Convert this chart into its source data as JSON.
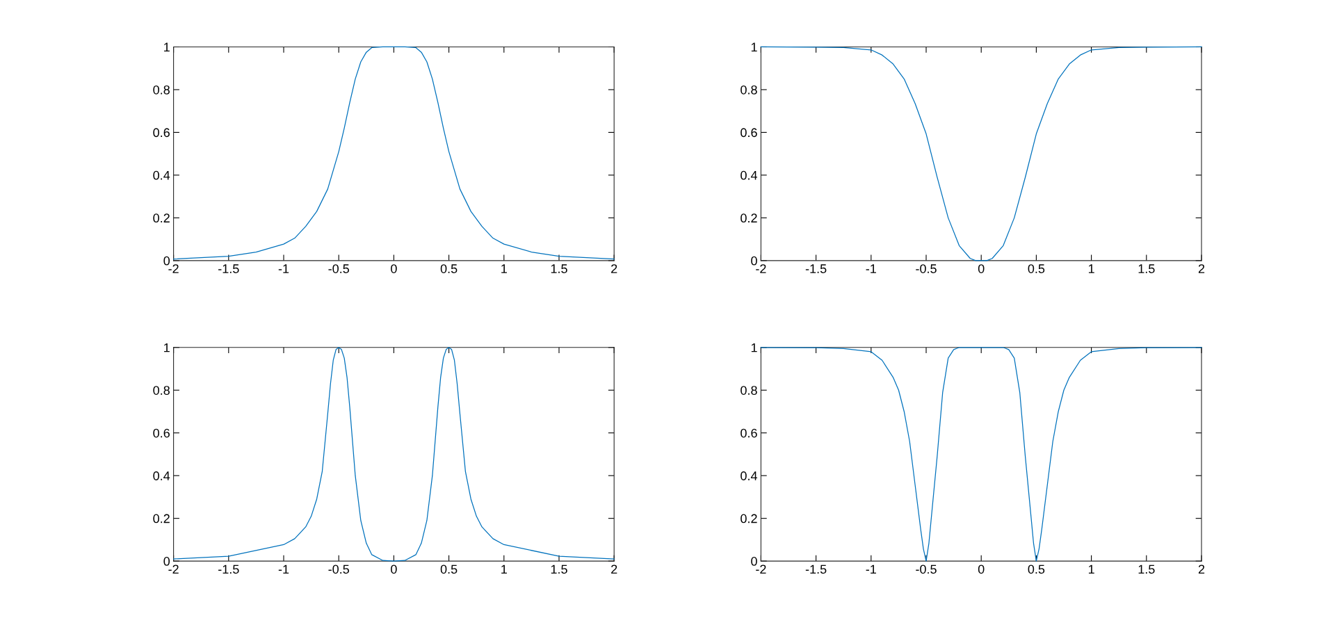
{
  "chart_data": [
    {
      "type": "line",
      "xlim": [
        -2,
        2
      ],
      "ylim": [
        0,
        1
      ],
      "xticks": [
        -2,
        -1.5,
        -1,
        -0.5,
        0,
        0.5,
        1,
        1.5,
        2
      ],
      "yticks": [
        0,
        0.2,
        0.4,
        0.6,
        0.8,
        1
      ],
      "grid": false,
      "legend": false,
      "series": [
        {
          "color": "#0072bd",
          "x": [
            -2,
            -1.5,
            -1.25,
            -1,
            -0.9,
            -0.8,
            -0.7,
            -0.6,
            -0.5,
            -0.45,
            -0.4,
            -0.35,
            -0.3,
            -0.25,
            -0.2,
            -0.1,
            0,
            0.1,
            0.2,
            0.25,
            0.3,
            0.35,
            0.4,
            0.45,
            0.5,
            0.6,
            0.7,
            0.8,
            0.9,
            1,
            1.25,
            1.5,
            2
          ],
          "values": [
            0.007,
            0.02,
            0.04,
            0.077,
            0.105,
            0.16,
            0.23,
            0.335,
            0.51,
            0.62,
            0.74,
            0.85,
            0.93,
            0.975,
            0.997,
            1,
            1,
            1,
            0.997,
            0.975,
            0.93,
            0.85,
            0.74,
            0.62,
            0.51,
            0.335,
            0.23,
            0.16,
            0.105,
            0.077,
            0.04,
            0.02,
            0.007
          ]
        }
      ]
    },
    {
      "type": "line",
      "xlim": [
        -2,
        2
      ],
      "ylim": [
        0,
        1
      ],
      "xticks": [
        -2,
        -1.5,
        -1,
        -0.5,
        0,
        0.5,
        1,
        1.5,
        2
      ],
      "yticks": [
        0,
        0.2,
        0.4,
        0.6,
        0.8,
        1
      ],
      "grid": false,
      "legend": false,
      "series": [
        {
          "color": "#0072bd",
          "x": [
            -2,
            -1.5,
            -1.25,
            -1,
            -0.9,
            -0.8,
            -0.7,
            -0.6,
            -0.5,
            -0.4,
            -0.3,
            -0.2,
            -0.1,
            -0.05,
            0,
            0.05,
            0.1,
            0.2,
            0.3,
            0.4,
            0.5,
            0.6,
            0.7,
            0.8,
            0.9,
            1,
            1.25,
            1.5,
            2
          ],
          "values": [
            1,
            0.999,
            0.997,
            0.986,
            0.962,
            0.92,
            0.85,
            0.735,
            0.593,
            0.39,
            0.2,
            0.07,
            0.01,
            0,
            0,
            0,
            0.01,
            0.07,
            0.2,
            0.39,
            0.593,
            0.735,
            0.85,
            0.92,
            0.962,
            0.986,
            0.997,
            0.999,
            1
          ]
        }
      ]
    },
    {
      "type": "line",
      "xlim": [
        -2,
        2
      ],
      "ylim": [
        0,
        1
      ],
      "xticks": [
        -2,
        -1.5,
        -1,
        -0.5,
        0,
        0.5,
        1,
        1.5,
        2
      ],
      "yticks": [
        0,
        0.2,
        0.4,
        0.6,
        0.8,
        1
      ],
      "grid": false,
      "legend": false,
      "series": [
        {
          "color": "#0072bd",
          "x": [
            -2,
            -1.5,
            -1,
            -0.9,
            -0.8,
            -0.75,
            -0.7,
            -0.65,
            -0.6,
            -0.575,
            -0.55,
            -0.525,
            -0.5,
            -0.475,
            -0.45,
            -0.425,
            -0.4,
            -0.35,
            -0.3,
            -0.25,
            -0.2,
            -0.1,
            0,
            0.1,
            0.2,
            0.25,
            0.3,
            0.35,
            0.4,
            0.425,
            0.45,
            0.475,
            0.5,
            0.525,
            0.55,
            0.575,
            0.6,
            0.65,
            0.7,
            0.75,
            0.8,
            0.9,
            1,
            1.5,
            2
          ],
          "values": [
            0.01,
            0.023,
            0.077,
            0.105,
            0.16,
            0.21,
            0.29,
            0.42,
            0.69,
            0.83,
            0.94,
            0.99,
            1,
            0.99,
            0.95,
            0.86,
            0.72,
            0.4,
            0.19,
            0.084,
            0.03,
            0.003,
            0,
            0.003,
            0.03,
            0.084,
            0.19,
            0.4,
            0.72,
            0.86,
            0.95,
            0.99,
            1,
            0.99,
            0.94,
            0.83,
            0.69,
            0.42,
            0.29,
            0.21,
            0.16,
            0.105,
            0.077,
            0.023,
            0.01
          ]
        }
      ]
    },
    {
      "type": "line",
      "xlim": [
        -2,
        2
      ],
      "ylim": [
        0,
        1
      ],
      "xticks": [
        -2,
        -1.5,
        -1,
        -0.5,
        0,
        0.5,
        1,
        1.5,
        2
      ],
      "yticks": [
        0,
        0.2,
        0.4,
        0.6,
        0.8,
        1
      ],
      "grid": false,
      "legend": false,
      "series": [
        {
          "color": "#0072bd",
          "x": [
            -2,
            -1.5,
            -1.25,
            -1,
            -0.9,
            -0.8,
            -0.75,
            -0.7,
            -0.65,
            -0.6,
            -0.55,
            -0.525,
            -0.5,
            -0.475,
            -0.45,
            -0.4,
            -0.35,
            -0.3,
            -0.25,
            -0.2,
            0,
            0.2,
            0.25,
            0.3,
            0.35,
            0.4,
            0.45,
            0.475,
            0.5,
            0.525,
            0.55,
            0.6,
            0.65,
            0.7,
            0.75,
            0.8,
            0.9,
            1,
            1.25,
            1.5,
            2
          ],
          "values": [
            1,
            0.999,
            0.995,
            0.98,
            0.94,
            0.86,
            0.8,
            0.7,
            0.56,
            0.355,
            0.15,
            0.057,
            0,
            0.084,
            0.22,
            0.49,
            0.79,
            0.95,
            0.99,
            1,
            1,
            1,
            0.99,
            0.95,
            0.79,
            0.49,
            0.22,
            0.084,
            0,
            0.057,
            0.15,
            0.355,
            0.56,
            0.7,
            0.8,
            0.86,
            0.94,
            0.98,
            0.995,
            0.999,
            1
          ]
        }
      ]
    }
  ]
}
